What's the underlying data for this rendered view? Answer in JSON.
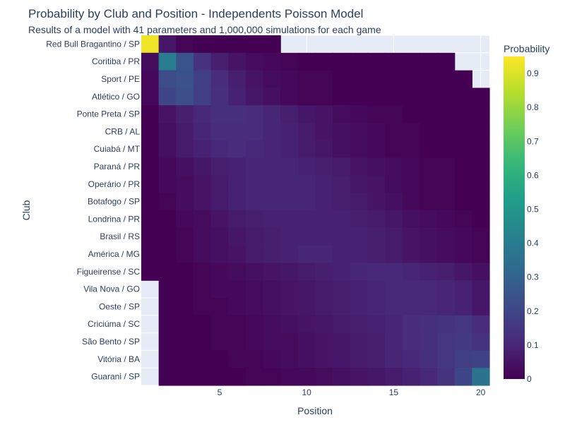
{
  "chart_data": {
    "type": "heatmap",
    "title": "Probability by Club and Position - Independents Poisson Model",
    "subtitle": "Results of a model with 41 parameters and 1,000,000 simulations for each game",
    "xlabel": "Position",
    "ylabel": "Club",
    "colorbar_title": "Probability",
    "colorscale": "Viridis",
    "colorscale_stops": [
      "#440154",
      "#482878",
      "#3e4989",
      "#31688e",
      "#26828e",
      "#1f9e89",
      "#35b779",
      "#6ece58",
      "#b5de2b",
      "#fde725"
    ],
    "zlim": [
      0,
      0.95
    ],
    "colorbar_ticks": [
      0,
      0.1,
      0.2,
      0.3,
      0.4,
      0.5,
      0.6,
      0.7,
      0.8,
      0.9
    ],
    "colorbar_tick_labels": [
      "0",
      "0.1",
      "0.2",
      "0.3",
      "0.4",
      "0.5",
      "0.6",
      "0.7",
      "0.8",
      "0.9"
    ],
    "x_ticks": [
      5,
      10,
      15,
      20
    ],
    "x_tick_labels": [
      "5",
      "10",
      "15",
      "20"
    ],
    "x": [
      1,
      2,
      3,
      4,
      5,
      6,
      7,
      8,
      9,
      10,
      11,
      12,
      13,
      14,
      15,
      16,
      17,
      18,
      19,
      20
    ],
    "xlim": [
      0.5,
      20.5
    ],
    "clubs": [
      "Red Bull Bragantino / SP",
      "Coritiba / PR",
      "Sport / PE",
      "Atlético / GO",
      "Ponte Preta / SP",
      "CRB / AL",
      "Cuiabá / MT",
      "Paraná / PR",
      "Operário / PR",
      "Botafogo / SP",
      "Londrina / PR",
      "Brasil / RS",
      "América / MG",
      "Figueirense / SC",
      "Vila Nova / GO",
      "Oeste / SP",
      "Criciúma / SC",
      "São Bento / SP",
      "Vitória / BA",
      "Guarani / SP"
    ],
    "z": [
      [
        0.93,
        0.06,
        0.01,
        0.0,
        0.0,
        0.0,
        0.0,
        0.0,
        null,
        null,
        null,
        null,
        null,
        null,
        null,
        null,
        null,
        null,
        null,
        null
      ],
      [
        0.03,
        0.4,
        0.25,
        0.14,
        0.08,
        0.05,
        0.03,
        0.02,
        0.01,
        0.0,
        0.0,
        0.0,
        0.0,
        0.0,
        0.0,
        0.0,
        0.0,
        0.0,
        null,
        null
      ],
      [
        0.02,
        0.22,
        0.24,
        0.18,
        0.12,
        0.08,
        0.05,
        0.03,
        0.02,
        0.01,
        0.01,
        0.0,
        0.0,
        0.0,
        0.0,
        0.0,
        0.0,
        0.0,
        0.0,
        null
      ],
      [
        0.02,
        0.2,
        0.23,
        0.18,
        0.13,
        0.09,
        0.06,
        0.04,
        0.02,
        0.01,
        0.01,
        0.0,
        0.0,
        0.0,
        0.0,
        0.0,
        0.0,
        0.0,
        0.0,
        0.0
      ],
      [
        0.0,
        0.05,
        0.08,
        0.11,
        0.13,
        0.13,
        0.12,
        0.1,
        0.08,
        0.06,
        0.05,
        0.03,
        0.02,
        0.01,
        0.01,
        0.0,
        0.0,
        0.0,
        0.0,
        0.0
      ],
      [
        0.0,
        0.04,
        0.07,
        0.1,
        0.12,
        0.12,
        0.12,
        0.1,
        0.09,
        0.07,
        0.05,
        0.04,
        0.03,
        0.02,
        0.01,
        0.01,
        0.0,
        0.0,
        0.0,
        0.0
      ],
      [
        0.0,
        0.04,
        0.07,
        0.09,
        0.11,
        0.12,
        0.11,
        0.1,
        0.09,
        0.07,
        0.06,
        0.04,
        0.03,
        0.02,
        0.01,
        0.01,
        0.0,
        0.0,
        0.0,
        0.0
      ],
      [
        0.0,
        0.02,
        0.04,
        0.06,
        0.08,
        0.09,
        0.1,
        0.1,
        0.1,
        0.09,
        0.08,
        0.07,
        0.05,
        0.04,
        0.03,
        0.02,
        0.01,
        0.01,
        0.0,
        0.0
      ],
      [
        0.0,
        0.02,
        0.03,
        0.05,
        0.07,
        0.09,
        0.1,
        0.1,
        0.1,
        0.1,
        0.09,
        0.08,
        0.06,
        0.05,
        0.03,
        0.02,
        0.01,
        0.01,
        0.0,
        0.0
      ],
      [
        0.0,
        0.01,
        0.03,
        0.05,
        0.07,
        0.09,
        0.1,
        0.1,
        0.1,
        0.1,
        0.09,
        0.08,
        0.07,
        0.05,
        0.04,
        0.02,
        0.01,
        0.01,
        0.0,
        0.0
      ],
      [
        0.0,
        0.0,
        0.02,
        0.03,
        0.05,
        0.07,
        0.08,
        0.09,
        0.09,
        0.09,
        0.09,
        0.09,
        0.08,
        0.07,
        0.06,
        0.04,
        0.03,
        0.02,
        0.01,
        0.0
      ],
      [
        0.0,
        0.0,
        0.01,
        0.03,
        0.04,
        0.06,
        0.07,
        0.08,
        0.09,
        0.09,
        0.09,
        0.09,
        0.09,
        0.08,
        0.07,
        0.05,
        0.04,
        0.03,
        0.02,
        0.01
      ],
      [
        0.0,
        0.0,
        0.01,
        0.03,
        0.04,
        0.05,
        0.07,
        0.08,
        0.09,
        0.1,
        0.1,
        0.09,
        0.09,
        0.08,
        0.07,
        0.05,
        0.04,
        0.03,
        0.02,
        0.01
      ],
      [
        0.0,
        0.0,
        0.0,
        0.01,
        0.02,
        0.03,
        0.04,
        0.05,
        0.06,
        0.07,
        0.08,
        0.09,
        0.1,
        0.11,
        0.11,
        0.1,
        0.09,
        0.08,
        0.06,
        0.04
      ],
      [
        null,
        0.0,
        0.0,
        0.01,
        0.02,
        0.02,
        0.03,
        0.04,
        0.05,
        0.06,
        0.07,
        0.08,
        0.09,
        0.1,
        0.11,
        0.11,
        0.11,
        0.1,
        0.09,
        0.06
      ],
      [
        null,
        0.0,
        0.0,
        0.01,
        0.01,
        0.02,
        0.03,
        0.04,
        0.05,
        0.06,
        0.07,
        0.08,
        0.09,
        0.1,
        0.11,
        0.11,
        0.11,
        0.1,
        0.09,
        0.06
      ],
      [
        null,
        0.0,
        0.0,
        0.0,
        0.01,
        0.01,
        0.02,
        0.03,
        0.04,
        0.05,
        0.06,
        0.07,
        0.08,
        0.09,
        0.1,
        0.12,
        0.13,
        0.14,
        0.15,
        0.12
      ],
      [
        null,
        0.0,
        0.0,
        0.0,
        0.01,
        0.01,
        0.02,
        0.03,
        0.03,
        0.04,
        0.05,
        0.06,
        0.07,
        0.08,
        0.1,
        0.12,
        0.13,
        0.15,
        0.16,
        0.14
      ],
      [
        null,
        0.0,
        0.0,
        0.0,
        0.0,
        0.01,
        0.01,
        0.02,
        0.03,
        0.04,
        0.05,
        0.06,
        0.07,
        0.08,
        0.1,
        0.11,
        0.13,
        0.15,
        0.18,
        0.19
      ],
      [
        null,
        0.0,
        0.0,
        0.0,
        0.0,
        0.0,
        0.01,
        0.01,
        0.02,
        0.02,
        0.03,
        0.04,
        0.05,
        0.06,
        0.07,
        0.09,
        0.11,
        0.14,
        0.2,
        0.36
      ]
    ]
  }
}
